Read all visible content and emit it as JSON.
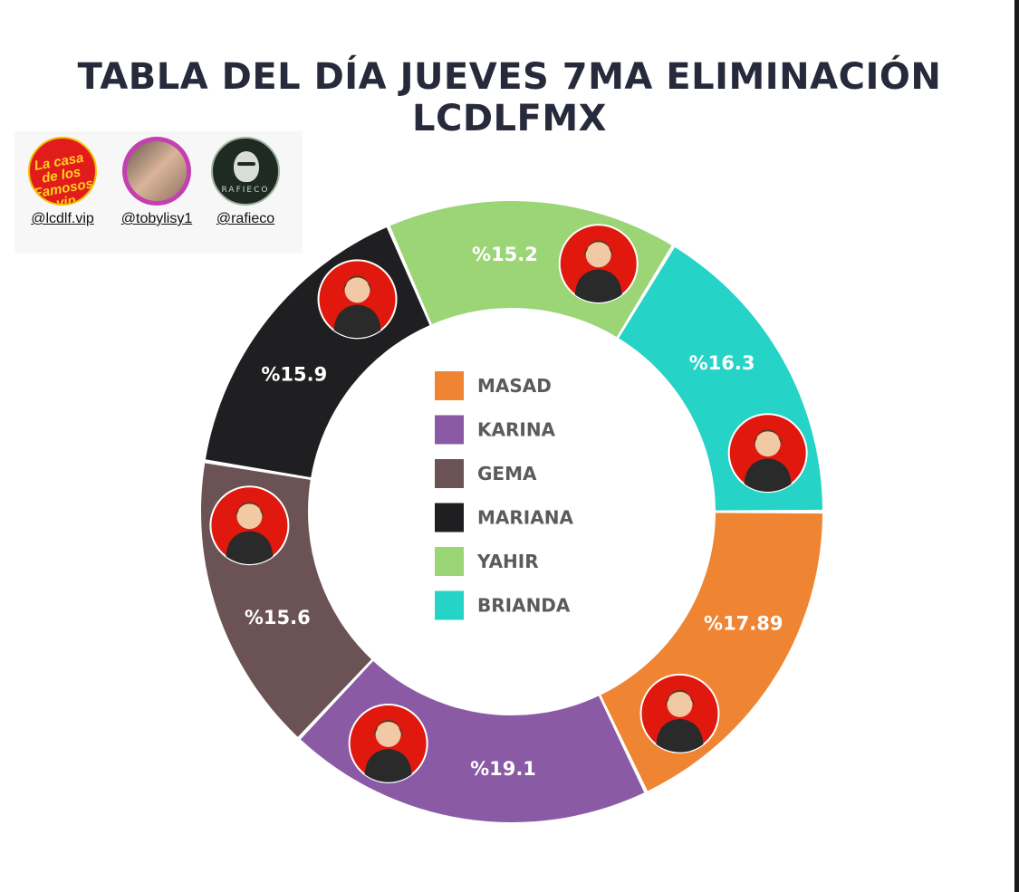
{
  "title": "TABLA DEL DÍA JUEVES 7MA ELIMINACIÓN LCDLFMX",
  "credits": [
    {
      "handle": "@lcdlf.vip",
      "logo_text": "La casa de los Famosos vip",
      "icon": "casa-famosos-logo-icon"
    },
    {
      "handle": "@tobylisy1",
      "icon": "tobylisy-avatar-icon"
    },
    {
      "handle": "@rafieco",
      "logo_text": "RAFIECO",
      "icon": "rafieco-mask-logo-icon"
    }
  ],
  "chart_data": {
    "type": "pie",
    "donut": true,
    "legend_placement": "center",
    "series": [
      {
        "name": "MASAD",
        "label": "%17.89",
        "value": 17.89,
        "color": "#ef8433"
      },
      {
        "name": "KARINA",
        "label": "%19.1",
        "value": 19.1,
        "color": "#8b5aa5"
      },
      {
        "name": "GEMA",
        "label": "%15.6",
        "value": 15.6,
        "color": "#6b5255"
      },
      {
        "name": "MARIANA",
        "label": "%15.9",
        "value": 15.9,
        "color": "#1f1f22"
      },
      {
        "name": "YAHIR",
        "label": "%15.2",
        "value": 15.2,
        "color": "#9bd576"
      },
      {
        "name": "BRIANDA",
        "label": "%16.3",
        "value": 16.3,
        "color": "#25d3c7"
      }
    ],
    "avatar_background": "#e0180e"
  }
}
